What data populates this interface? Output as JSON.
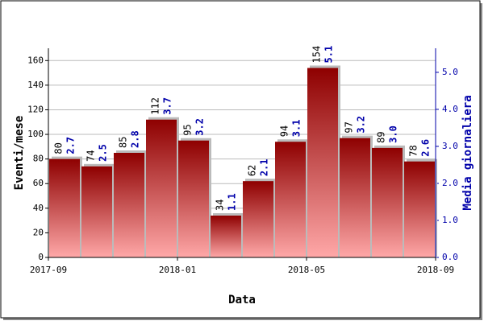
{
  "chart_data": {
    "type": "bar",
    "x_label": "Data",
    "y_label": "Eventi/mese",
    "y2_label": "Media giornaliera",
    "xticks": [
      {
        "value": 0,
        "label": "2017-09"
      },
      {
        "value": 4,
        "label": "2018-01"
      },
      {
        "value": 8,
        "label": "2018-05"
      },
      {
        "value": 12,
        "label": "2018-09"
      }
    ],
    "series": [
      {
        "name": "Eventi/mese",
        "color": "#a00000",
        "values": [
          80,
          74,
          85,
          112,
          95,
          34,
          62,
          94,
          154,
          97,
          89,
          78
        ]
      },
      {
        "name": "Media giornaliera",
        "color": "#0000aa",
        "axis": "y2",
        "values": [
          2.7,
          2.5,
          2.8,
          3.7,
          3.2,
          1.1,
          2.1,
          3.1,
          5.1,
          3.2,
          3.0,
          2.6
        ],
        "value_labels": [
          "2.7",
          "2.5",
          "2.8",
          "3.7",
          "3.2",
          "1.1",
          "2.1",
          "3.1",
          "5.1",
          "3.2",
          "3.0",
          "2.6"
        ]
      }
    ],
    "ylim": [
      0,
      170
    ],
    "yticks": [
      0,
      20,
      40,
      60,
      80,
      100,
      120,
      140,
      160
    ],
    "y2lim": [
      0,
      5.65
    ],
    "y2ticks": [
      {
        "value": 0,
        "label": "0.0"
      },
      {
        "value": 1,
        "label": "1.0"
      },
      {
        "value": 2,
        "label": "2.0"
      },
      {
        "value": 3,
        "label": "3.0"
      },
      {
        "value": 4,
        "label": "4.0"
      },
      {
        "value": 5,
        "label": "5.0"
      }
    ],
    "grid": true
  }
}
